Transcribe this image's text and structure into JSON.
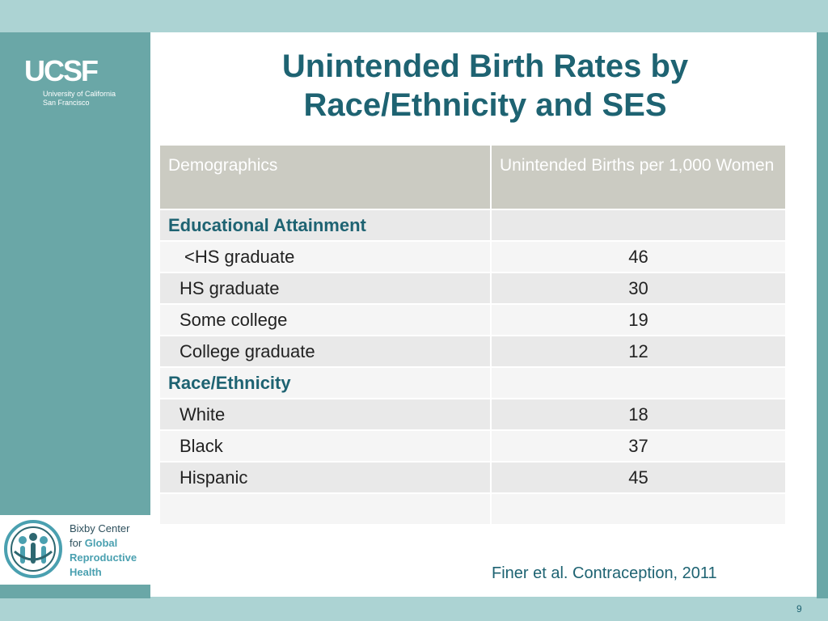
{
  "slide": {
    "title_line1": "Unintended Birth Rates by",
    "title_line2": "Race/Ethnicity and SES",
    "citation": "Finer et al. Contraception, 2011",
    "page_number": "9"
  },
  "logos": {
    "ucsf_mark": "UCSF",
    "ucsf_line1": "University of California",
    "ucsf_line2": "San Francisco",
    "bixby_line1": "Bixby Center",
    "bixby_line2a": "for ",
    "bixby_line2b": "Global",
    "bixby_line3": "Reproductive",
    "bixby_line4": "Health"
  },
  "table": {
    "headers": [
      "Demographics",
      "Unintended Births per 1,000 Women"
    ],
    "rows": [
      {
        "label": "Educational Attainment",
        "value": "",
        "section": true
      },
      {
        "label": "<HS graduate",
        "value": "46"
      },
      {
        "label": "HS graduate",
        "value": "30"
      },
      {
        "label": "Some college",
        "value": "19"
      },
      {
        "label": "College graduate",
        "value": "12"
      },
      {
        "label": "Race/Ethnicity",
        "value": "",
        "section": true
      },
      {
        "label": "White",
        "value": "18"
      },
      {
        "label": "Black",
        "value": "37"
      },
      {
        "label": "Hispanic",
        "value": "45"
      },
      {
        "label": "",
        "value": ""
      }
    ]
  },
  "colors": {
    "teal_dark": "#1e6372",
    "teal_side": "#6aa7a7",
    "teal_light": "#acd3d3",
    "header_bg": "#cbcbc2"
  }
}
